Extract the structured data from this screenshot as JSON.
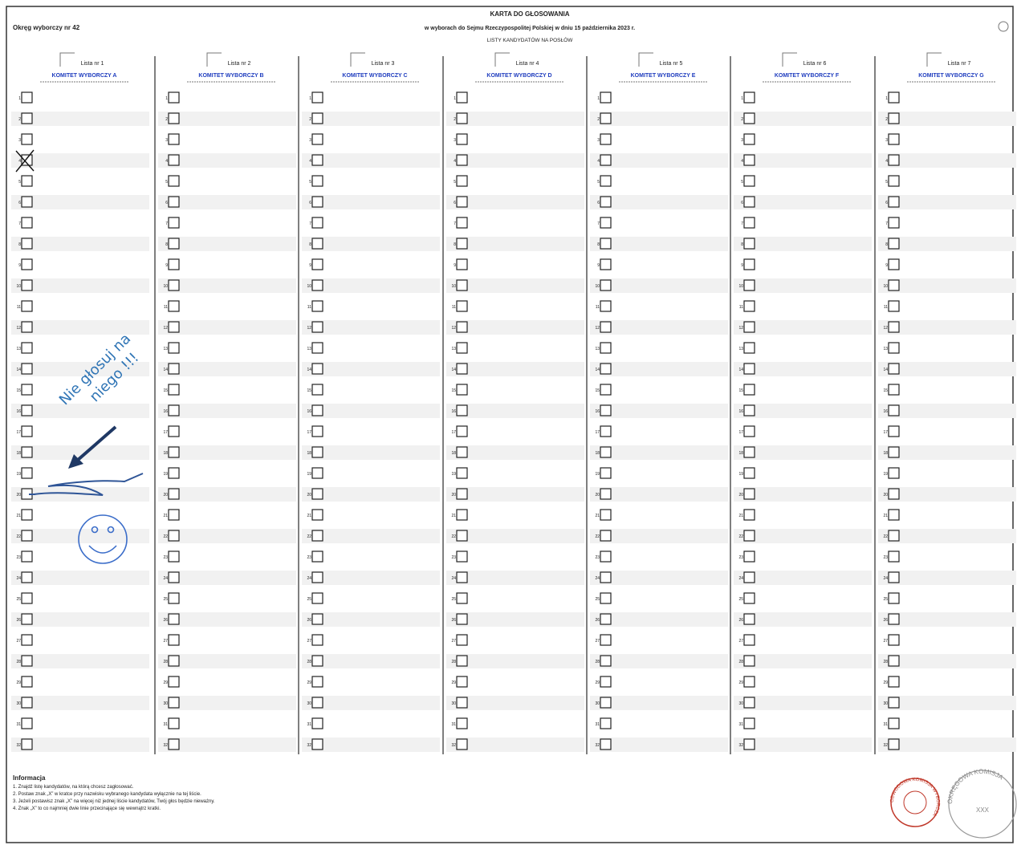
{
  "header": {
    "district": "Okręg wyborczy nr 42",
    "title": "KARTA DO GŁOSOWANIA",
    "subtitle": "w wyborach do Sejmu Rzeczypospolitej Polskiej w dniu 15 października 2023 r.",
    "lists_heading": "LISTY KANDYDATÓW NA POSŁÓW"
  },
  "lists": [
    {
      "number": "Lista nr 1",
      "committee": "KOMITET WYBORCZY A",
      "candidates": [
        1,
        2,
        3,
        4,
        5,
        6,
        7,
        8,
        9,
        10,
        11,
        12,
        13,
        14,
        15,
        16,
        17,
        18,
        19,
        20,
        21,
        22,
        23,
        24,
        25,
        26,
        27,
        28,
        29,
        30,
        31,
        32
      ]
    },
    {
      "number": "Lista nr 2",
      "committee": "KOMITET WYBORCZY B",
      "candidates": [
        1,
        2,
        3,
        4,
        5,
        6,
        7,
        8,
        9,
        10,
        11,
        12,
        13,
        14,
        15,
        16,
        17,
        18,
        19,
        20,
        21,
        22,
        23,
        24,
        25,
        26,
        27,
        28,
        29,
        30,
        31,
        32
      ]
    },
    {
      "number": "Lista nr 3",
      "committee": "KOMITET WYBORCZY C",
      "candidates": [
        1,
        2,
        3,
        4,
        5,
        6,
        7,
        8,
        9,
        10,
        11,
        12,
        13,
        14,
        15,
        16,
        17,
        18,
        19,
        20,
        21,
        22,
        23,
        24,
        25,
        26,
        27,
        28,
        29,
        30,
        31,
        32
      ]
    },
    {
      "number": "Lista nr 4",
      "committee": "KOMITET WYBORCZY D",
      "candidates": [
        1,
        2,
        3,
        4,
        5,
        6,
        7,
        8,
        9,
        10,
        11,
        12,
        13,
        14,
        15,
        16,
        17,
        18,
        19,
        20,
        21,
        22,
        23,
        24,
        25,
        26,
        27,
        28,
        29,
        30,
        31,
        32
      ]
    },
    {
      "number": "Lista nr 5",
      "committee": "KOMITET WYBORCZY E",
      "candidates": [
        1,
        2,
        3,
        4,
        5,
        6,
        7,
        8,
        9,
        10,
        11,
        12,
        13,
        14,
        15,
        16,
        17,
        18,
        19,
        20,
        21,
        22,
        23,
        24,
        25,
        26,
        27,
        28,
        29,
        30,
        31,
        32
      ]
    },
    {
      "number": "Lista nr 6",
      "committee": "KOMITET WYBORCZY  F",
      "candidates": [
        1,
        2,
        3,
        4,
        5,
        6,
        7,
        8,
        9,
        10,
        11,
        12,
        13,
        14,
        15,
        16,
        17,
        18,
        19,
        20,
        21,
        22,
        23,
        24,
        25,
        26,
        27,
        28,
        29,
        30,
        31,
        32
      ]
    },
    {
      "number": "Lista nr 7",
      "committee": "KOMITET WYBORCZY G",
      "candidates": [
        1,
        2,
        3,
        4,
        5,
        6,
        7,
        8,
        9,
        10,
        11,
        12,
        13,
        14,
        15,
        16,
        17,
        18,
        19,
        20,
        21,
        22,
        23,
        24,
        25,
        26,
        27,
        28,
        29,
        30,
        31,
        32
      ]
    }
  ],
  "annotation": {
    "lines": [
      "Nie głosuj na",
      "niego !!!"
    ]
  },
  "info": {
    "title": "Informacja",
    "lines": [
      "1. Znajdź listę kandydatów, na którą chcesz zagłosować.",
      "2. Postaw znak „X” w kratce przy nazwisku wybranego kandydata wyłącznie na tej liście.",
      "3. Jeżeli postawisz znak „X” na więcej niż jednej liście kandydatów, Twój głos będzie nieważny.",
      "4. Znak „X” to co najmniej dwie linie przecinające się wewnątrz kratki."
    ]
  },
  "stamps": {
    "district_commission": "OBWODOWA KOMISJA WYBORCZA",
    "regional_commission": "OKRĘGOWA KOMISJA",
    "code": "XXX"
  }
}
